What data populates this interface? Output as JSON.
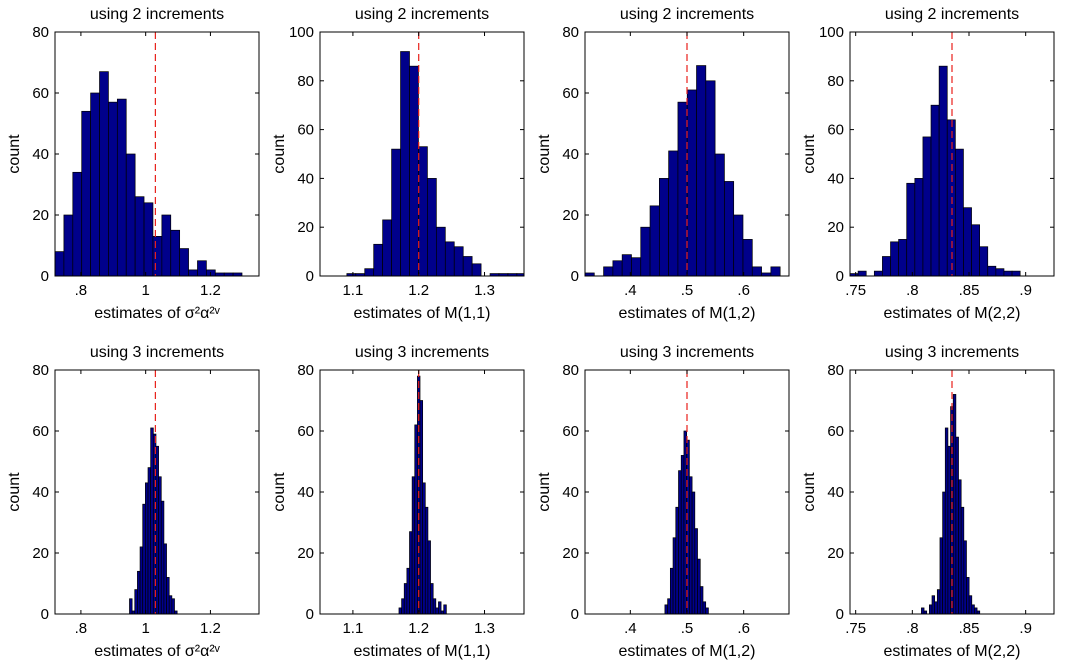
{
  "colors": {
    "bar": "#00008B",
    "bar_edge": "#000000",
    "ref_line": "#E8201A"
  },
  "chart_data": [
    {
      "type": "bar",
      "title": "using 2 increments",
      "xlabel": "estimates of σ²α²ᵛ",
      "ylabel": "count",
      "xlim": [
        0.72,
        1.35
      ],
      "ylim": [
        0,
        80
      ],
      "xticks": [
        0.8,
        1,
        1.2
      ],
      "yticks": [
        0,
        20,
        40,
        60,
        80
      ],
      "bin_edges_start": 0.72,
      "bin_width": 0.0275,
      "ref_value": 1.03,
      "values": [
        8,
        20,
        34,
        54,
        60,
        67,
        57,
        58,
        40,
        26,
        24,
        13,
        20,
        15,
        9,
        2,
        5,
        2,
        1,
        1,
        1,
        0,
        0
      ]
    },
    {
      "type": "bar",
      "title": "using 2 increments",
      "xlabel": "estimates of M(1,1)",
      "ylabel": "count",
      "xlim": [
        1.05,
        1.36
      ],
      "ylim": [
        0,
        100
      ],
      "xticks": [
        1.1,
        1.2,
        1.3
      ],
      "yticks": [
        0,
        20,
        40,
        60,
        80,
        100
      ],
      "bin_edges_start": 1.05,
      "bin_width": 0.0136,
      "ref_value": 1.2,
      "values": [
        0,
        0,
        0,
        1,
        1,
        3,
        13,
        23,
        52,
        92,
        86,
        53,
        40,
        20,
        14,
        12,
        8,
        5,
        0,
        1,
        1,
        1,
        1
      ]
    },
    {
      "type": "bar",
      "title": "using 2 increments",
      "xlabel": "estimates of M(1,2)",
      "ylabel": "count",
      "xlim": [
        0.32,
        0.68
      ],
      "ylim": [
        0,
        80
      ],
      "xticks": [
        0.4,
        0.5,
        0.6
      ],
      "yticks": [
        0,
        20,
        40,
        60,
        80
      ],
      "bin_edges_start": 0.32,
      "bin_width": 0.0164,
      "ref_value": 0.5,
      "values": [
        1,
        0,
        3,
        5,
        7,
        6,
        16,
        23,
        32,
        41,
        57,
        61,
        69,
        64,
        40,
        31,
        20,
        12,
        3,
        1,
        3,
        0
      ]
    },
    {
      "type": "bar",
      "title": "using 2 increments",
      "xlabel": "estimates of M(2,2)",
      "ylabel": "count",
      "xlim": [
        0.745,
        0.925
      ],
      "ylim": [
        0,
        100
      ],
      "xticks": [
        0.75,
        0.8,
        0.85,
        0.9
      ],
      "yticks": [
        0,
        20,
        40,
        60,
        80,
        100
      ],
      "bin_edges_start": 0.745,
      "bin_width": 0.00715,
      "ref_value": 0.835,
      "values": [
        1,
        2,
        0,
        2,
        8,
        14,
        15,
        38,
        40,
        57,
        70,
        86,
        64,
        52,
        28,
        21,
        12,
        4,
        3,
        2,
        2,
        0,
        0
      ]
    },
    {
      "type": "bar",
      "title": "using 3 increments",
      "xlabel": "estimates of σ²α²ᵛ",
      "ylabel": "count",
      "xlim": [
        0.72,
        1.35
      ],
      "ylim": [
        0,
        80
      ],
      "xticks": [
        0.8,
        1,
        1.2
      ],
      "yticks": [
        0,
        20,
        40,
        60,
        80
      ],
      "bin_edges_start": 0.95,
      "bin_width": 0.00818,
      "ref_value": 1.03,
      "values": [
        5,
        1,
        8,
        14,
        22,
        36,
        43,
        48,
        61,
        59,
        55,
        45,
        37,
        23,
        12,
        6,
        5,
        1
      ]
    },
    {
      "type": "bar",
      "title": "using 3 increments",
      "xlabel": "estimates of M(1,1)",
      "ylabel": "count",
      "xlim": [
        1.05,
        1.36
      ],
      "ylim": [
        0,
        80
      ],
      "xticks": [
        1.1,
        1.2,
        1.3
      ],
      "yticks": [
        0,
        20,
        40,
        60,
        80
      ],
      "bin_edges_start": 1.17,
      "bin_width": 0.004,
      "ref_value": 1.2,
      "values": [
        2,
        5,
        10,
        15,
        27,
        45,
        62,
        78,
        70,
        43,
        35,
        24,
        10,
        5,
        2,
        4,
        1,
        3
      ]
    },
    {
      "type": "bar",
      "title": "using 3 increments",
      "xlabel": "estimates of M(1,2)",
      "ylabel": "count",
      "xlim": [
        0.32,
        0.68
      ],
      "ylim": [
        0,
        80
      ],
      "xticks": [
        0.4,
        0.5,
        0.6
      ],
      "yticks": [
        0,
        20,
        40,
        60,
        80
      ],
      "bin_edges_start": 0.461,
      "bin_width": 0.0048,
      "ref_value": 0.5,
      "values": [
        3,
        5,
        15,
        25,
        35,
        47,
        52,
        60,
        57,
        45,
        40,
        28,
        18,
        9,
        4,
        2
      ]
    },
    {
      "type": "bar",
      "title": "using 3 increments",
      "xlabel": "estimates of M(2,2)",
      "ylabel": "count",
      "xlim": [
        0.745,
        0.925
      ],
      "ylim": [
        0,
        80
      ],
      "xticks": [
        0.75,
        0.8,
        0.85,
        0.9
      ],
      "yticks": [
        0,
        20,
        40,
        60,
        80
      ],
      "bin_edges_start": 0.808,
      "bin_width": 0.00234,
      "ref_value": 0.835,
      "values": [
        2,
        1,
        0,
        3,
        6,
        4,
        8,
        25,
        40,
        61,
        55,
        68,
        72,
        58,
        44,
        35,
        24,
        12,
        6,
        3,
        2,
        1
      ]
    }
  ]
}
